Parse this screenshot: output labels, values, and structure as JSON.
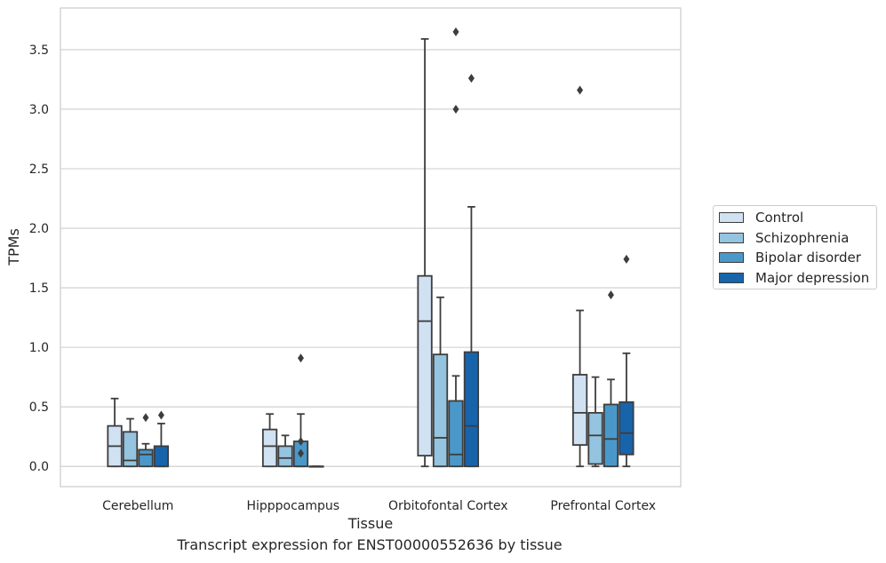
{
  "chart_data": {
    "type": "box",
    "title": "",
    "caption": "Transcript expression for ENST00000552636 by tissue",
    "xlabel": "Tissue",
    "ylabel": "TPMs",
    "ylim": [
      -0.17,
      3.85
    ],
    "yticks": [
      "0.0",
      "0.5",
      "1.0",
      "1.5",
      "2.0",
      "2.5",
      "3.0",
      "3.5"
    ],
    "grid": "horizontal",
    "legend_position": "right",
    "categories": [
      "Cerebellum",
      "Hipppocampus",
      "Orbitofontal Cortex",
      "Prefrontal Cortex"
    ],
    "series": [
      {
        "name": "Control",
        "color": "#d0e1f2",
        "boxes": [
          {
            "whisker_low": 0.0,
            "q1": 0.0,
            "median": 0.17,
            "q3": 0.34,
            "whisker_high": 0.57,
            "outliers": []
          },
          {
            "whisker_low": 0.0,
            "q1": 0.0,
            "median": 0.17,
            "q3": 0.31,
            "whisker_high": 0.44,
            "outliers": []
          },
          {
            "whisker_low": 0.0,
            "q1": 0.09,
            "median": 1.22,
            "q3": 1.6,
            "whisker_high": 3.59,
            "outliers": []
          },
          {
            "whisker_low": 0.0,
            "q1": 0.18,
            "median": 0.45,
            "q3": 0.77,
            "whisker_high": 1.31,
            "outliers": [
              3.16
            ]
          }
        ]
      },
      {
        "name": "Schizophrenia",
        "color": "#94c4df",
        "boxes": [
          {
            "whisker_low": 0.0,
            "q1": 0.0,
            "median": 0.05,
            "q3": 0.29,
            "whisker_high": 0.4,
            "outliers": []
          },
          {
            "whisker_low": 0.0,
            "q1": 0.0,
            "median": 0.07,
            "q3": 0.17,
            "whisker_high": 0.26,
            "outliers": []
          },
          {
            "whisker_low": 0.0,
            "q1": 0.0,
            "median": 0.24,
            "q3": 0.94,
            "whisker_high": 1.42,
            "outliers": []
          },
          {
            "whisker_low": 0.0,
            "q1": 0.02,
            "median": 0.26,
            "q3": 0.45,
            "whisker_high": 0.75,
            "outliers": []
          }
        ]
      },
      {
        "name": "Bipolar disorder",
        "color": "#4a98c9",
        "boxes": [
          {
            "whisker_low": 0.0,
            "q1": 0.0,
            "median": 0.1,
            "q3": 0.14,
            "whisker_high": 0.19,
            "outliers": [
              0.41
            ]
          },
          {
            "whisker_low": 0.0,
            "q1": 0.0,
            "median": 0.0,
            "q3": 0.21,
            "whisker_high": 0.44,
            "outliers": [
              0.11,
              0.21,
              0.91
            ]
          },
          {
            "whisker_low": 0.0,
            "q1": 0.0,
            "median": 0.1,
            "q3": 0.55,
            "whisker_high": 0.76,
            "outliers": [
              3.0,
              3.65
            ]
          },
          {
            "whisker_low": 0.0,
            "q1": 0.0,
            "median": 0.23,
            "q3": 0.52,
            "whisker_high": 0.73,
            "outliers": [
              1.44
            ]
          }
        ]
      },
      {
        "name": "Major depression",
        "color": "#1764ab",
        "boxes": [
          {
            "whisker_low": 0.0,
            "q1": 0.0,
            "median": 0.0,
            "q3": 0.17,
            "whisker_high": 0.36,
            "outliers": [
              0.43
            ]
          },
          {
            "whisker_low": 0.0,
            "q1": 0.0,
            "median": 0.0,
            "q3": 0.0,
            "whisker_high": 0.0,
            "outliers": []
          },
          {
            "whisker_low": 0.0,
            "q1": 0.0,
            "median": 0.34,
            "q3": 0.96,
            "whisker_high": 2.18,
            "outliers": [
              3.26
            ]
          },
          {
            "whisker_low": 0.0,
            "q1": 0.1,
            "median": 0.28,
            "q3": 0.54,
            "whisker_high": 0.95,
            "outliers": [
              1.74
            ]
          }
        ]
      }
    ]
  }
}
